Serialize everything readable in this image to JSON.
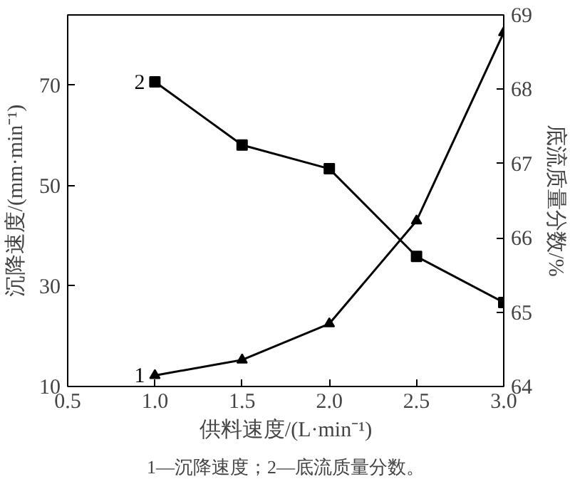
{
  "chart_data": {
    "type": "line",
    "xlabel": "供料速度/(L·min⁻¹)",
    "ylabel": "沉降速度/(mm·min⁻¹)",
    "y2label": "底流质量分数/%",
    "x": [
      1.0,
      1.5,
      2.0,
      2.5,
      3.0
    ],
    "series": [
      {
        "color": "#000000",
        "marker": "triangle",
        "values": [
          12.2,
          15.3,
          22.5,
          43,
          80.5
        ]
      },
      {
        "color": "#000000",
        "marker": "square",
        "axis": "y2",
        "values": [
          68.1,
          67.25,
          66.93,
          65.75,
          65.13
        ]
      }
    ],
    "xlim": [
      0.5,
      3.0
    ],
    "xticks": [
      {
        "value": 0.5,
        "label": "0.5"
      },
      {
        "value": 1.0,
        "label": "1.0"
      },
      {
        "value": 1.5,
        "label": "1.5"
      },
      {
        "value": 2.0,
        "label": "2.0"
      },
      {
        "value": 2.5,
        "label": "2.5"
      },
      {
        "value": 3.0,
        "label": "3.0"
      }
    ],
    "ylim": [
      10,
      84
    ],
    "yticks": [
      10,
      30,
      50,
      70
    ],
    "y2lim": [
      64,
      69
    ],
    "y2ticks": [
      64,
      65,
      66,
      67,
      68,
      69
    ],
    "grid": false,
    "annotations": [
      {
        "text": "1",
        "x": 1.0,
        "y": 12.2
      },
      {
        "text": "2",
        "x": 1.0,
        "y": 70.7
      },
      "1—沉降速度；2—底流质量分数。"
    ]
  }
}
